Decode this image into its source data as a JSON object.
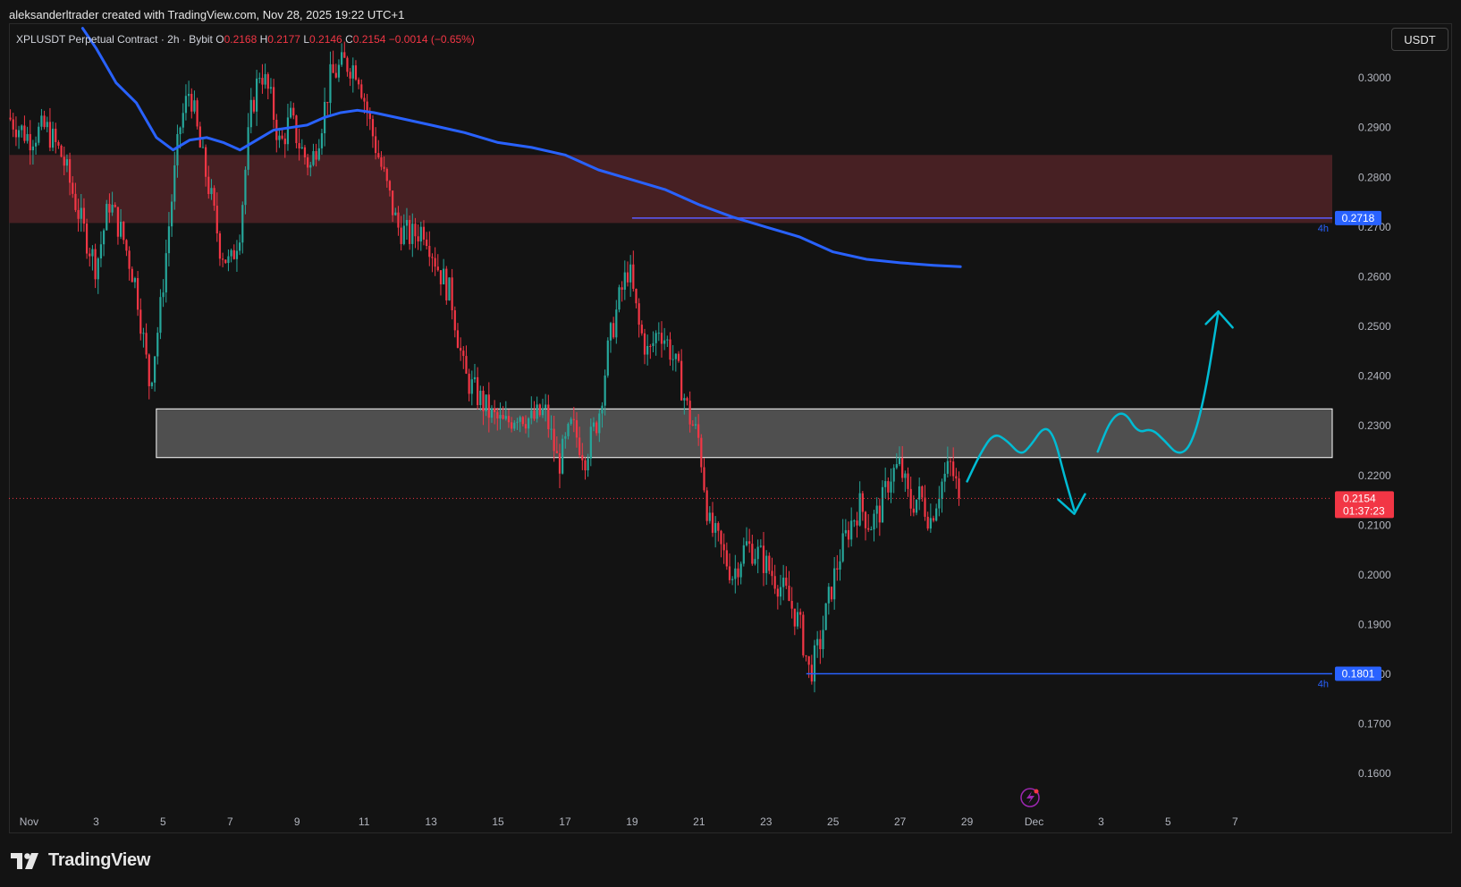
{
  "header": {
    "credit": "aleksanderltrader created with TradingView.com, Nov 28, 2025 19:22 UTC+1"
  },
  "symbol": {
    "title": "XPLUSDT Perpetual Contract · 2h · Bybit",
    "open_label": "O",
    "open": "0.2168",
    "high_label": "H",
    "high": "0.2177",
    "low_label": "L",
    "low": "0.2146",
    "close_label": "C",
    "close": "0.2154",
    "change": "−0.0014 (−0.65%)"
  },
  "currency_button": "USDT",
  "branding": {
    "logo_text": "TradingView",
    "logo_icon": "tradingview-logo-icon"
  },
  "colors": {
    "background": "#131313",
    "up": "#26a69a",
    "down": "#f23645",
    "ma_line": "#2962ff",
    "resistance_zone": "#4a2124",
    "support_zone": "#5a5a5a",
    "projection": "#00bcd4"
  },
  "chart_data": {
    "type": "candlestick",
    "interval": "2h",
    "y_ticks": [
      "0.3000",
      "0.2900",
      "0.2800",
      "0.2700",
      "0.2600",
      "0.2500",
      "0.2400",
      "0.2300",
      "0.2200",
      "0.2100",
      "0.2000",
      "0.1900",
      "0.1800",
      "0.1700",
      "0.1600"
    ],
    "ylim": [
      0.155,
      0.311
    ],
    "x_ticks": [
      {
        "label": "Nov",
        "day": 1
      },
      {
        "label": "3",
        "day": 3
      },
      {
        "label": "5",
        "day": 5
      },
      {
        "label": "7",
        "day": 7
      },
      {
        "label": "9",
        "day": 9
      },
      {
        "label": "11",
        "day": 11
      },
      {
        "label": "13",
        "day": 13
      },
      {
        "label": "15",
        "day": 15
      },
      {
        "label": "17",
        "day": 17
      },
      {
        "label": "19",
        "day": 19
      },
      {
        "label": "21",
        "day": 21
      },
      {
        "label": "23",
        "day": 23
      },
      {
        "label": "25",
        "day": 25
      },
      {
        "label": "27",
        "day": 27
      },
      {
        "label": "29",
        "day": 29
      },
      {
        "label": "Dec",
        "day": 31
      },
      {
        "label": "3",
        "day": 33
      },
      {
        "label": "5",
        "day": 35
      },
      {
        "label": "7",
        "day": 37
      }
    ],
    "xlim_days": [
      0.4,
      39.9
    ],
    "price_path": [
      [
        0.4,
        0.292
      ],
      [
        1.0,
        0.288
      ],
      [
        1.5,
        0.29
      ],
      [
        2.0,
        0.284
      ],
      [
        2.6,
        0.27
      ],
      [
        3.0,
        0.262
      ],
      [
        3.4,
        0.275
      ],
      [
        3.8,
        0.268
      ],
      [
        4.2,
        0.258
      ],
      [
        4.6,
        0.238
      ],
      [
        4.9,
        0.252
      ],
      [
        5.2,
        0.272
      ],
      [
        5.5,
        0.29
      ],
      [
        5.8,
        0.298
      ],
      [
        6.1,
        0.286
      ],
      [
        6.4,
        0.277
      ],
      [
        6.7,
        0.266
      ],
      [
        7.0,
        0.262
      ],
      [
        7.3,
        0.27
      ],
      [
        7.6,
        0.292
      ],
      [
        7.9,
        0.302
      ],
      [
        8.2,
        0.296
      ],
      [
        8.5,
        0.286
      ],
      [
        8.8,
        0.292
      ],
      [
        9.1,
        0.286
      ],
      [
        9.4,
        0.282
      ],
      [
        9.7,
        0.29
      ],
      [
        10.0,
        0.3
      ],
      [
        10.4,
        0.303
      ],
      [
        10.8,
        0.302
      ],
      [
        11.2,
        0.29
      ],
      [
        11.6,
        0.28
      ],
      [
        12.0,
        0.27
      ],
      [
        12.4,
        0.268
      ],
      [
        12.8,
        0.27
      ],
      [
        13.2,
        0.262
      ],
      [
        13.6,
        0.256
      ],
      [
        14.0,
        0.24
      ],
      [
        14.4,
        0.236
      ],
      [
        14.8,
        0.232
      ],
      [
        15.2,
        0.23
      ],
      [
        15.6,
        0.233
      ],
      [
        16.0,
        0.231
      ],
      [
        16.4,
        0.233
      ],
      [
        16.8,
        0.222
      ],
      [
        17.2,
        0.23
      ],
      [
        17.6,
        0.224
      ],
      [
        18.0,
        0.232
      ],
      [
        18.3,
        0.246
      ],
      [
        18.6,
        0.255
      ],
      [
        18.9,
        0.262
      ],
      [
        19.2,
        0.25
      ],
      [
        19.5,
        0.244
      ],
      [
        19.8,
        0.25
      ],
      [
        20.1,
        0.246
      ],
      [
        20.4,
        0.24
      ],
      [
        20.7,
        0.232
      ],
      [
        21.0,
        0.227
      ],
      [
        21.3,
        0.21
      ],
      [
        21.6,
        0.206
      ],
      [
        22.0,
        0.2
      ],
      [
        22.4,
        0.206
      ],
      [
        22.8,
        0.204
      ],
      [
        23.2,
        0.2
      ],
      [
        23.6,
        0.196
      ],
      [
        24.0,
        0.19
      ],
      [
        24.3,
        0.18
      ],
      [
        24.6,
        0.186
      ],
      [
        24.9,
        0.196
      ],
      [
        25.2,
        0.204
      ],
      [
        25.5,
        0.21
      ],
      [
        25.8,
        0.214
      ],
      [
        26.1,
        0.21
      ],
      [
        26.4,
        0.213
      ],
      [
        26.7,
        0.22
      ],
      [
        27.0,
        0.222
      ],
      [
        27.3,
        0.214
      ],
      [
        27.6,
        0.216
      ],
      [
        27.9,
        0.211
      ],
      [
        28.2,
        0.218
      ],
      [
        28.5,
        0.222
      ],
      [
        28.8,
        0.2154
      ]
    ],
    "candle_count": 336,
    "last_price": "0.2154",
    "countdown": "01:37:23",
    "levels": [
      {
        "price": 0.2718,
        "label": "0.2718",
        "timeframe": "4h",
        "start_day": 19.0
      },
      {
        "price": 0.1801,
        "label": "0.1801",
        "timeframe": "4h",
        "start_day": 24.2
      }
    ],
    "zones": [
      {
        "name": "resistance",
        "top": 0.2845,
        "bottom": 0.2708,
        "start_day": 0.4
      },
      {
        "name": "support",
        "top": 0.2334,
        "bottom": 0.2236,
        "start_day": 4.8
      }
    ],
    "moving_average": [
      [
        2.6,
        0.31
      ],
      [
        3.0,
        0.306
      ],
      [
        3.6,
        0.299
      ],
      [
        4.2,
        0.295
      ],
      [
        4.8,
        0.288
      ],
      [
        5.3,
        0.2855
      ],
      [
        5.8,
        0.2875
      ],
      [
        6.3,
        0.288
      ],
      [
        6.8,
        0.287
      ],
      [
        7.3,
        0.2855
      ],
      [
        7.8,
        0.2875
      ],
      [
        8.3,
        0.2895
      ],
      [
        8.8,
        0.29
      ],
      [
        9.3,
        0.2905
      ],
      [
        9.8,
        0.292
      ],
      [
        10.3,
        0.293
      ],
      [
        10.8,
        0.2935
      ],
      [
        11.3,
        0.293
      ],
      [
        12.0,
        0.292
      ],
      [
        13.0,
        0.2905
      ],
      [
        14.0,
        0.289
      ],
      [
        15.0,
        0.287
      ],
      [
        16.0,
        0.286
      ],
      [
        17.0,
        0.2845
      ],
      [
        18.0,
        0.2815
      ],
      [
        19.0,
        0.2795
      ],
      [
        20.0,
        0.2775
      ],
      [
        21.0,
        0.2745
      ],
      [
        22.0,
        0.272
      ],
      [
        23.0,
        0.27
      ],
      [
        24.0,
        0.268
      ],
      [
        25.0,
        0.265
      ],
      [
        26.0,
        0.2635
      ],
      [
        27.0,
        0.2628
      ],
      [
        28.0,
        0.2623
      ],
      [
        28.8,
        0.262
      ]
    ],
    "projections": [
      {
        "name": "bearish-path",
        "points": [
          [
            29.0,
            0.2188
          ],
          [
            29.4,
            0.2245
          ],
          [
            29.8,
            0.2286
          ],
          [
            30.2,
            0.227
          ],
          [
            30.6,
            0.224
          ],
          [
            30.9,
            0.226
          ],
          [
            31.3,
            0.23
          ],
          [
            31.6,
            0.228
          ],
          [
            31.9,
            0.22
          ],
          [
            32.2,
            0.213
          ]
        ],
        "arrow": "down"
      },
      {
        "name": "bullish-path",
        "points": [
          [
            32.9,
            0.2248
          ],
          [
            33.3,
            0.2315
          ],
          [
            33.7,
            0.233
          ],
          [
            34.1,
            0.2285
          ],
          [
            34.5,
            0.2295
          ],
          [
            34.9,
            0.227
          ],
          [
            35.3,
            0.224
          ],
          [
            35.7,
            0.226
          ],
          [
            36.1,
            0.236
          ],
          [
            36.5,
            0.253
          ]
        ],
        "arrow": "up"
      }
    ]
  }
}
